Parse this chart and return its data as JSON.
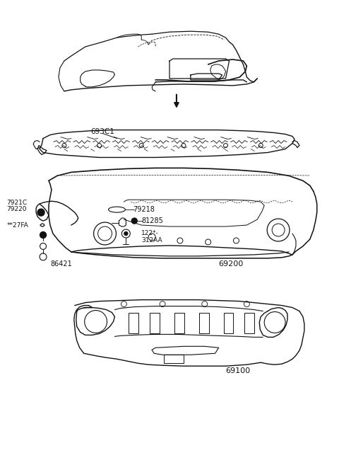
{
  "background_color": "#ffffff",
  "line_color": "#111111",
  "labels": {
    "l693C1": "693C1",
    "l69200": "69200",
    "l69100": "69100",
    "l79218": "79218",
    "l81285": "81285",
    "l7921C": "7921C",
    "l79220": "79220",
    "l27FA": "**27FA",
    "l12AA": "122*-",
    "l312AA": "312AA",
    "l86421": "86421"
  },
  "figsize": [
    4.8,
    6.57
  ],
  "dpi": 100
}
